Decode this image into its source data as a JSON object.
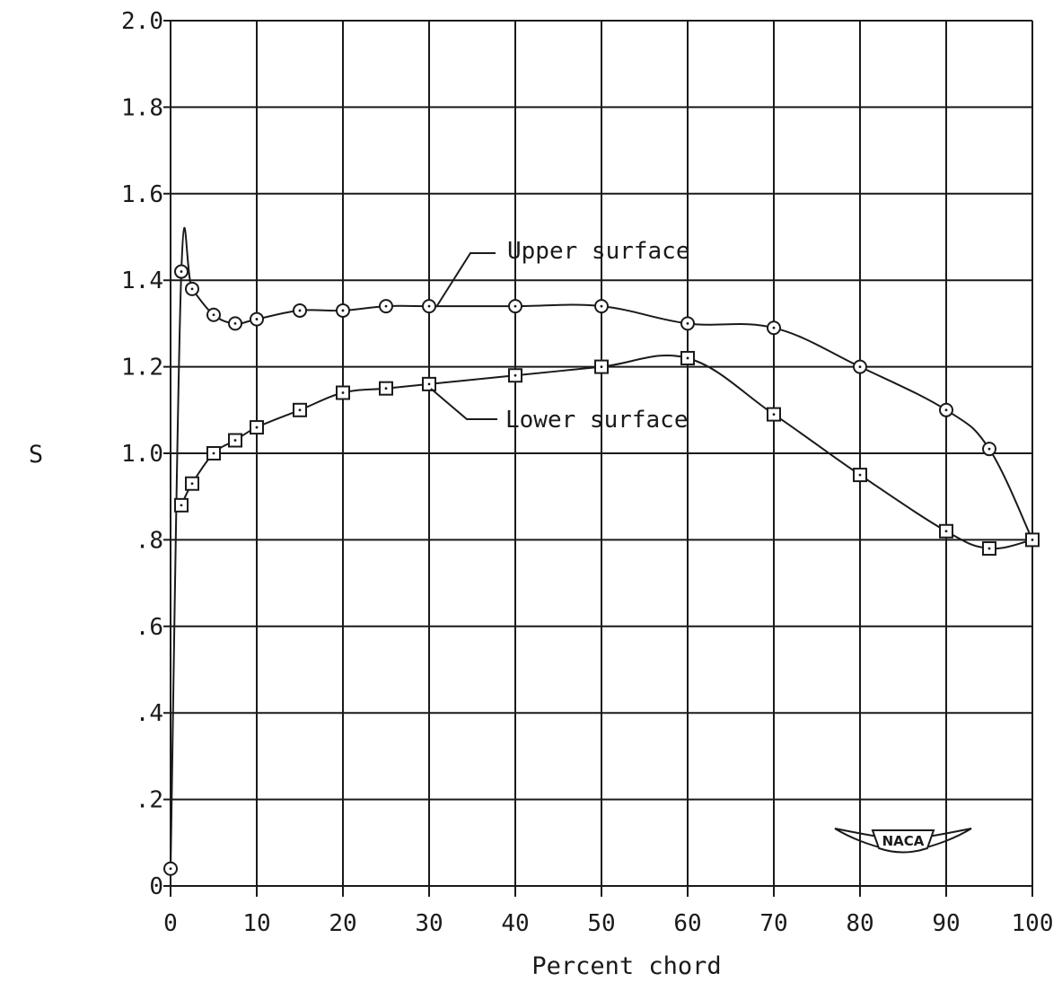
{
  "chart_data": {
    "type": "line",
    "xlabel": "Percent chord",
    "ylabel": "S",
    "xlim": [
      0,
      100
    ],
    "ylim": [
      0,
      2.0
    ],
    "x_ticks": [
      0,
      10,
      20,
      30,
      40,
      50,
      60,
      70,
      80,
      90,
      100
    ],
    "x_tick_labels": [
      "0",
      "10",
      "20",
      "30",
      "40",
      "50",
      "60",
      "70",
      "80",
      "90",
      "100"
    ],
    "y_ticks": [
      0,
      0.2,
      0.4,
      0.6,
      0.8,
      1.0,
      1.2,
      1.4,
      1.6,
      1.8,
      2.0
    ],
    "y_tick_labels": [
      "0",
      ".2",
      ".4",
      ".6",
      ".8",
      "1.0",
      "1.2",
      "1.4",
      "1.6",
      "1.8",
      "2.0"
    ],
    "grid": true,
    "series": [
      {
        "name": "Upper surface",
        "marker": "circle",
        "points": [
          [
            0,
            0.04
          ],
          [
            1.25,
            1.42
          ],
          [
            2.5,
            1.38
          ],
          [
            5,
            1.32
          ],
          [
            7.5,
            1.3
          ],
          [
            10,
            1.31
          ],
          [
            15,
            1.33
          ],
          [
            20,
            1.33
          ],
          [
            25,
            1.34
          ],
          [
            30,
            1.34
          ],
          [
            40,
            1.34
          ],
          [
            50,
            1.34
          ],
          [
            60,
            1.3
          ],
          [
            70,
            1.29
          ],
          [
            80,
            1.2
          ],
          [
            90,
            1.1
          ],
          [
            95,
            1.01
          ],
          [
            100,
            0.8
          ]
        ]
      },
      {
        "name": "Lower surface",
        "marker": "square",
        "points": [
          [
            1.25,
            0.88
          ],
          [
            2.5,
            0.93
          ],
          [
            5,
            1.0
          ],
          [
            7.5,
            1.03
          ],
          [
            10,
            1.06
          ],
          [
            15,
            1.1
          ],
          [
            20,
            1.14
          ],
          [
            25,
            1.15
          ],
          [
            30,
            1.16
          ],
          [
            40,
            1.18
          ],
          [
            50,
            1.2
          ],
          [
            60,
            1.22
          ],
          [
            70,
            1.09
          ],
          [
            80,
            0.95
          ],
          [
            90,
            0.82
          ],
          [
            95,
            0.78
          ],
          [
            100,
            0.8
          ]
        ]
      }
    ],
    "logo": "NACA"
  }
}
